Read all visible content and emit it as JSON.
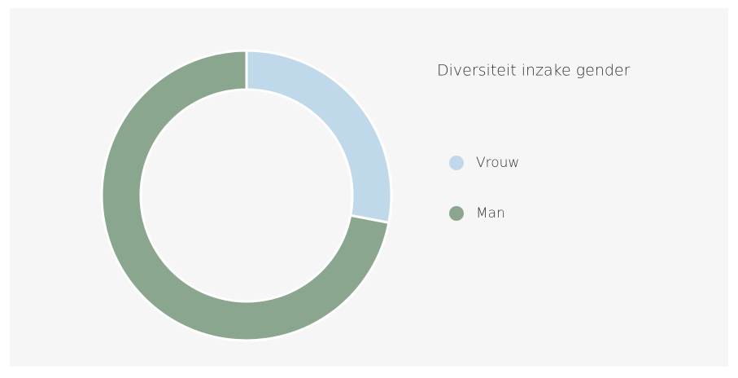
{
  "chart_data": {
    "type": "donut",
    "title": "Diversiteit inzake gender",
    "categories": [
      "Vrouw",
      "Man"
    ],
    "values": [
      28,
      72
    ],
    "colors": [
      "#bfd9ea",
      "#8ba68e"
    ],
    "legend": "right"
  }
}
